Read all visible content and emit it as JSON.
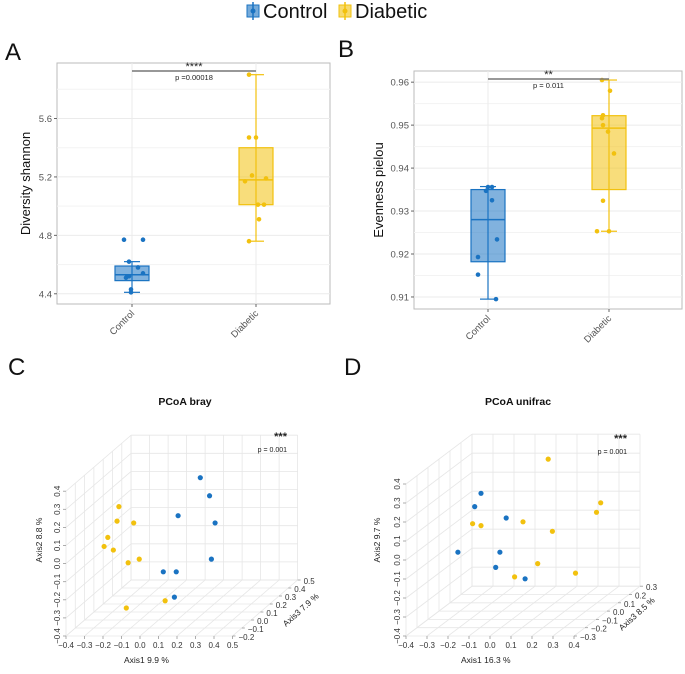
{
  "colors": {
    "Control": "#1a73c2",
    "Diabetic": "#f2c10e"
  },
  "legend": {
    "items": [
      {
        "label": "Control",
        "color": "#1a73c2"
      },
      {
        "label": "Diabetic",
        "color": "#f2c10e"
      }
    ]
  },
  "chart_data": [
    {
      "panel": "A",
      "type": "boxplot",
      "categories": [
        "Control",
        "Diabetic"
      ],
      "ylabel": "Diversity shannon",
      "xlabel": "",
      "ylim": [
        4.33,
        5.98
      ],
      "yticks": [
        4.4,
        4.8,
        5.2,
        5.6
      ],
      "grid": true,
      "significance": {
        "stars": "****",
        "p_label": "p =0.00018"
      },
      "series": [
        {
          "name": "Control",
          "q1": 4.49,
          "median": 4.53,
          "q3": 4.59,
          "whisker_low": 4.41,
          "whisker_high": 4.62,
          "points": [
            4.62,
            4.58,
            4.54,
            4.52,
            4.51,
            4.43,
            4.41,
            4.77,
            4.77
          ]
        },
        {
          "name": "Diabetic",
          "q1": 5.01,
          "median": 5.18,
          "q3": 5.4,
          "whisker_low": 4.76,
          "whisker_high": 5.9,
          "points": [
            5.9,
            5.47,
            5.47,
            5.21,
            5.19,
            5.17,
            5.01,
            5.01,
            4.91,
            4.76
          ]
        }
      ]
    },
    {
      "panel": "B",
      "type": "boxplot",
      "categories": [
        "Control",
        "Diabetic"
      ],
      "ylabel": "Evenness pielou",
      "xlabel": "",
      "ylim": [
        0.9072,
        0.9626
      ],
      "yticks": [
        0.91,
        0.92,
        0.93,
        0.94,
        0.95,
        0.96
      ],
      "grid": true,
      "significance": {
        "stars": "**",
        "p_label": "p = 0.011"
      },
      "series": [
        {
          "name": "Control",
          "q1": 0.9182,
          "median": 0.928,
          "q3": 0.935,
          "whisker_low": 0.9095,
          "whisker_high": 0.9357,
          "points": [
            0.9356,
            0.9356,
            0.9347,
            0.9325,
            0.9234,
            0.9193,
            0.9152,
            0.9095
          ]
        },
        {
          "name": "Diabetic",
          "q1": 0.935,
          "median": 0.9493,
          "q3": 0.9522,
          "whisker_low": 0.9253,
          "whisker_high": 0.9605,
          "points": [
            0.9605,
            0.958,
            0.9523,
            0.9516,
            0.95,
            0.9485,
            0.9434,
            0.9324,
            0.9253,
            0.9253
          ]
        }
      ]
    },
    {
      "panel": "C",
      "type": "scatter3d",
      "title": "PCoA bray",
      "xlabel": "Axis1  9.9 %",
      "ylabel": "Axis2  8.8 %",
      "zlabel": "Axis3  7.9 %",
      "xlim": [
        -0.4,
        0.5
      ],
      "ylim": [
        -0.4,
        0.4
      ],
      "zlim": [
        -0.2,
        0.5
      ],
      "xticks": [
        -0.4,
        -0.3,
        -0.2,
        -0.1,
        0.0,
        0.1,
        0.2,
        0.3,
        0.4,
        0.5
      ],
      "yticks": [
        -0.4,
        -0.3,
        -0.2,
        -0.1,
        0.0,
        0.1,
        0.2,
        0.3,
        0.4
      ],
      "zticks": [
        -0.2,
        -0.1,
        0.0,
        0.1,
        0.2,
        0.3,
        0.4,
        0.5
      ],
      "significance": {
        "stars": "***",
        "p_label": "p = 0.001"
      },
      "series": [
        {
          "name": "Control",
          "points": [
            [
              0.15,
              0.32,
              0.15
            ],
            [
              0.2,
              0.22,
              0.15
            ],
            [
              0.03,
              0.11,
              0.15
            ],
            [
              0.23,
              0.07,
              0.15
            ],
            [
              0.21,
              -0.13,
              0.15
            ],
            [
              -0.05,
              -0.2,
              0.15
            ],
            [
              0.02,
              -0.2,
              0.15
            ],
            [
              0.01,
              -0.34,
              0.15
            ]
          ]
        },
        {
          "name": "Diabetic",
          "points": [
            [
              -0.29,
              0.16,
              0.15
            ],
            [
              -0.3,
              0.08,
              0.15
            ],
            [
              -0.21,
              0.07,
              0.15
            ],
            [
              -0.35,
              -0.01,
              0.15
            ],
            [
              -0.37,
              -0.06,
              0.15
            ],
            [
              -0.32,
              -0.08,
              0.15
            ],
            [
              -0.24,
              -0.15,
              0.15
            ],
            [
              -0.18,
              -0.13,
              0.15
            ],
            [
              -0.04,
              -0.36,
              0.15
            ],
            [
              -0.25,
              -0.4,
              0.15
            ]
          ]
        }
      ]
    },
    {
      "panel": "D",
      "type": "scatter3d",
      "title": "PCoA unifrac",
      "xlabel": "Axis1  16.3 %",
      "ylabel": "Axis2  9.7 %",
      "zlabel": "Axis3  8.5 %",
      "xlim": [
        -0.4,
        0.4
      ],
      "ylim": [
        -0.4,
        0.4
      ],
      "zlim": [
        -0.3,
        0.3
      ],
      "xticks": [
        -0.4,
        -0.3,
        -0.2,
        -0.1,
        0.0,
        0.1,
        0.2,
        0.3,
        0.4
      ],
      "yticks": [
        -0.4,
        -0.3,
        -0.2,
        -0.1,
        0.0,
        0.1,
        0.2,
        0.3,
        0.4
      ],
      "zticks": [
        -0.3,
        -0.2,
        -0.1,
        0.0,
        0.1,
        0.2,
        0.3
      ],
      "significance": {
        "stars": "***",
        "p_label": "p = 0.001"
      },
      "series": [
        {
          "name": "Control",
          "points": [
            [
              -0.2,
              0.22,
              0
            ],
            [
              -0.23,
              0.15,
              0
            ],
            [
              -0.08,
              0.09,
              0
            ],
            [
              -0.31,
              -0.09,
              0
            ],
            [
              -0.11,
              -0.09,
              0
            ],
            [
              -0.13,
              -0.17,
              0
            ],
            [
              0.01,
              -0.23,
              0
            ]
          ]
        },
        {
          "name": "Diabetic",
          "points": [
            [
              0.12,
              0.4,
              0
            ],
            [
              0.37,
              0.17,
              0
            ],
            [
              0.35,
              0.12,
              0
            ],
            [
              -0.24,
              0.06,
              0
            ],
            [
              -0.2,
              0.05,
              0
            ],
            [
              0.0,
              0.07,
              0
            ],
            [
              0.14,
              0.02,
              0
            ],
            [
              0.07,
              -0.15,
              0
            ],
            [
              0.25,
              -0.2,
              0
            ],
            [
              -0.04,
              -0.22,
              0
            ]
          ]
        }
      ]
    }
  ],
  "panel_labels": [
    "A",
    "B",
    "C",
    "D"
  ]
}
